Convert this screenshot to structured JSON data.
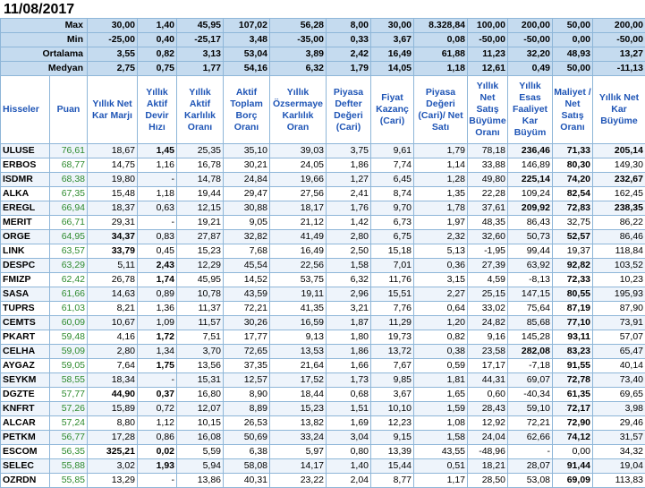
{
  "title": "11/08/2017",
  "headers": [
    "Hisseler",
    "Puan",
    "Yıllık Net Kar Marjı",
    "Yıllık Aktif Devir Hızı",
    "Yıllık Aktif Karlılık Oranı",
    "Aktif Toplam Borç Oranı",
    "Yıllık Özsermaye Karlılık Oran",
    "Piyasa Defter Değeri (Cari)",
    "Fiyat Kazanç (Cari)",
    "Piyasa Değeri (Cari)/ Net Satı",
    "Yıllık Net Satış Büyüme Oranı",
    "Yıllık Esas Faaliyet Kar Büyüm",
    "Maliyet / Net Satış Oranı",
    "Yıllık Net Kar Büyüme"
  ],
  "stats": [
    {
      "label": "Max",
      "values": [
        "30,00",
        "1,40",
        "45,95",
        "107,02",
        "56,28",
        "8,00",
        "30,00",
        "8.328,84",
        "100,00",
        "200,00",
        "50,00",
        "200,00"
      ]
    },
    {
      "label": "Min",
      "values": [
        "-25,00",
        "0,40",
        "-25,17",
        "3,48",
        "-35,00",
        "0,33",
        "3,67",
        "0,08",
        "-50,00",
        "-50,00",
        "0,00",
        "-50,00"
      ]
    },
    {
      "label": "Ortalama",
      "values": [
        "3,55",
        "0,82",
        "3,13",
        "53,04",
        "3,89",
        "2,42",
        "16,49",
        "61,88",
        "11,23",
        "32,20",
        "48,93",
        "13,27"
      ]
    },
    {
      "label": "Medyan",
      "values": [
        "2,75",
        "0,75",
        "1,77",
        "54,16",
        "6,32",
        "1,79",
        "14,05",
        "1,18",
        "12,61",
        "0,49",
        "50,00",
        "-11,13"
      ]
    }
  ],
  "rows": [
    {
      "name": "ULUSE",
      "score": "76,61",
      "values": [
        "18,67",
        "1,45",
        "25,35",
        "35,10",
        "39,03",
        "3,75",
        "9,61",
        "1,79",
        "78,18",
        "236,46",
        "71,33",
        "205,14"
      ],
      "bold": [
        1,
        9,
        10,
        11
      ]
    },
    {
      "name": "ERBOS",
      "score": "68,77",
      "values": [
        "14,75",
        "1,16",
        "16,78",
        "30,21",
        "24,05",
        "1,86",
        "7,74",
        "1,14",
        "33,88",
        "146,89",
        "80,30",
        "149,30"
      ],
      "bold": [
        10
      ]
    },
    {
      "name": "ISDMR",
      "score": "68,38",
      "values": [
        "19,80",
        "-",
        "14,78",
        "24,84",
        "19,66",
        "1,27",
        "6,45",
        "1,28",
        "49,80",
        "225,14",
        "74,20",
        "232,67"
      ],
      "bold": [
        9,
        10,
        11
      ]
    },
    {
      "name": "ALKA",
      "score": "67,35",
      "values": [
        "15,48",
        "1,18",
        "19,44",
        "29,47",
        "27,56",
        "2,41",
        "8,74",
        "1,35",
        "22,28",
        "109,24",
        "82,54",
        "162,45"
      ],
      "bold": [
        10
      ]
    },
    {
      "name": "EREGL",
      "score": "66,94",
      "values": [
        "18,37",
        "0,63",
        "12,15",
        "30,88",
        "18,17",
        "1,76",
        "9,70",
        "1,78",
        "37,61",
        "209,92",
        "72,83",
        "238,35"
      ],
      "bold": [
        9,
        10,
        11
      ]
    },
    {
      "name": "MERIT",
      "score": "66,71",
      "values": [
        "29,31",
        "-",
        "19,21",
        "9,05",
        "21,12",
        "1,42",
        "6,73",
        "1,97",
        "48,35",
        "86,43",
        "32,75",
        "86,22"
      ],
      "bold": []
    },
    {
      "name": "ORGE",
      "score": "64,95",
      "values": [
        "34,37",
        "0,83",
        "27,87",
        "32,82",
        "41,49",
        "2,80",
        "6,75",
        "2,32",
        "32,60",
        "50,73",
        "52,57",
        "86,46"
      ],
      "bold": [
        0,
        10
      ]
    },
    {
      "name": "LINK",
      "score": "63,57",
      "values": [
        "33,79",
        "0,45",
        "15,23",
        "7,68",
        "16,49",
        "2,50",
        "15,18",
        "5,13",
        "-1,95",
        "99,44",
        "19,37",
        "118,84"
      ],
      "bold": [
        0
      ]
    },
    {
      "name": "DESPC",
      "score": "63,29",
      "values": [
        "5,11",
        "2,43",
        "12,29",
        "45,54",
        "22,56",
        "1,58",
        "7,01",
        "0,36",
        "27,39",
        "63,92",
        "92,82",
        "103,52"
      ],
      "bold": [
        1,
        10
      ]
    },
    {
      "name": "FMIZP",
      "score": "62,42",
      "values": [
        "26,78",
        "1,74",
        "45,95",
        "14,52",
        "53,75",
        "6,32",
        "11,76",
        "3,15",
        "4,59",
        "-8,13",
        "72,33",
        "10,23"
      ],
      "bold": [
        1,
        10
      ]
    },
    {
      "name": "SASA",
      "score": "61,66",
      "values": [
        "14,63",
        "0,89",
        "10,78",
        "43,59",
        "19,11",
        "2,96",
        "15,51",
        "2,27",
        "25,15",
        "147,15",
        "80,55",
        "195,93"
      ],
      "bold": [
        10
      ]
    },
    {
      "name": "TUPRS",
      "score": "61,03",
      "values": [
        "8,21",
        "1,36",
        "11,37",
        "72,21",
        "41,35",
        "3,21",
        "7,76",
        "0,64",
        "33,02",
        "75,64",
        "87,19",
        "87,90"
      ],
      "bold": [
        10
      ]
    },
    {
      "name": "CEMTS",
      "score": "60,09",
      "values": [
        "10,67",
        "1,09",
        "11,57",
        "30,26",
        "16,59",
        "1,87",
        "11,29",
        "1,20",
        "24,82",
        "85,68",
        "77,10",
        "73,91"
      ],
      "bold": [
        10
      ]
    },
    {
      "name": "PKART",
      "score": "59,48",
      "values": [
        "4,16",
        "1,72",
        "7,51",
        "17,77",
        "9,13",
        "1,80",
        "19,73",
        "0,82",
        "9,16",
        "145,28",
        "93,11",
        "57,07"
      ],
      "bold": [
        1,
        10
      ]
    },
    {
      "name": "CELHA",
      "score": "59,09",
      "values": [
        "2,80",
        "1,34",
        "3,70",
        "72,65",
        "13,53",
        "1,86",
        "13,72",
        "0,38",
        "23,58",
        "282,08",
        "83,23",
        "65,47"
      ],
      "bold": [
        9,
        10
      ]
    },
    {
      "name": "AYGAZ",
      "score": "59,05",
      "values": [
        "7,64",
        "1,75",
        "13,56",
        "37,35",
        "21,64",
        "1,66",
        "7,67",
        "0,59",
        "17,17",
        "-7,18",
        "91,55",
        "40,14"
      ],
      "bold": [
        1,
        10
      ]
    },
    {
      "name": "SEYKM",
      "score": "58,55",
      "values": [
        "18,34",
        "-",
        "15,31",
        "12,57",
        "17,52",
        "1,73",
        "9,85",
        "1,81",
        "44,31",
        "69,07",
        "72,78",
        "73,40"
      ],
      "bold": [
        10
      ]
    },
    {
      "name": "DGZTE",
      "score": "57,77",
      "values": [
        "44,90",
        "0,37",
        "16,80",
        "8,90",
        "18,44",
        "0,68",
        "3,67",
        "1,65",
        "0,60",
        "-40,34",
        "61,35",
        "69,65"
      ],
      "bold": [
        0,
        1,
        10
      ]
    },
    {
      "name": "KNFRT",
      "score": "57,26",
      "values": [
        "15,89",
        "0,72",
        "12,07",
        "8,89",
        "15,23",
        "1,51",
        "10,10",
        "1,59",
        "28,43",
        "59,10",
        "72,17",
        "3,98"
      ],
      "bold": [
        10
      ]
    },
    {
      "name": "ALCAR",
      "score": "57,24",
      "values": [
        "8,80",
        "1,12",
        "10,15",
        "26,53",
        "13,82",
        "1,69",
        "12,23",
        "1,08",
        "12,92",
        "72,21",
        "72,90",
        "29,46"
      ],
      "bold": [
        10
      ]
    },
    {
      "name": "PETKM",
      "score": "56,77",
      "values": [
        "17,28",
        "0,86",
        "16,08",
        "50,69",
        "33,24",
        "3,04",
        "9,15",
        "1,58",
        "24,04",
        "62,66",
        "74,12",
        "31,57"
      ],
      "bold": [
        10
      ]
    },
    {
      "name": "ESCOM",
      "score": "56,35",
      "values": [
        "325,21",
        "0,02",
        "5,59",
        "6,38",
        "5,97",
        "0,80",
        "13,39",
        "43,55",
        "-48,96",
        "-",
        "0,00",
        "34,32"
      ],
      "bold": [
        0,
        1
      ]
    },
    {
      "name": "SELEC",
      "score": "55,88",
      "values": [
        "3,02",
        "1,93",
        "5,94",
        "58,08",
        "14,17",
        "1,40",
        "15,44",
        "0,51",
        "18,21",
        "28,07",
        "91,44",
        "19,04"
      ],
      "bold": [
        1,
        10
      ]
    },
    {
      "name": "OZRDN",
      "score": "55,85",
      "values": [
        "13,29",
        "-",
        "13,86",
        "40,31",
        "23,22",
        "2,04",
        "8,77",
        "1,17",
        "28,50",
        "53,08",
        "69,09",
        "113,83"
      ],
      "bold": [
        10
      ]
    }
  ]
}
